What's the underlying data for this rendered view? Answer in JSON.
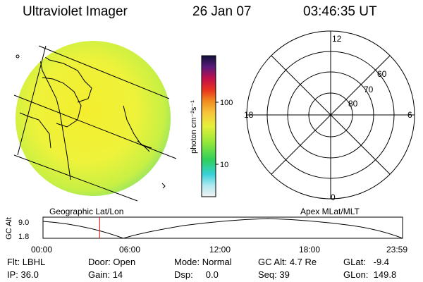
{
  "header": {
    "instrument": "Ultraviolet Imager",
    "date": "26 Jan 07",
    "time": "03:46:35 UT"
  },
  "colorbar": {
    "unit_label": "photon cm⁻²s⁻¹",
    "ticks": [
      "100",
      "10"
    ]
  },
  "polar_plot": {
    "mlt_labels": [
      "12",
      "18",
      "6",
      "0"
    ],
    "mlat_labels": [
      "60",
      "70",
      "80"
    ]
  },
  "panel_labels": {
    "left": "Geographic Lat/Lon",
    "right": "Apex MLat/MLT"
  },
  "altitude_plot": {
    "ylabel": "GC Alt",
    "y_ticks": [
      "9.0",
      "1.8"
    ],
    "x_ticks": [
      "00:00",
      "06:00",
      "12:00",
      "18:00",
      "23:59"
    ],
    "current_time_marker": "03:46:35"
  },
  "info": {
    "row1": [
      {
        "label": "Flt:",
        "value": "LBHL"
      },
      {
        "label": "Door:",
        "value": "Open"
      },
      {
        "label": "Mode:",
        "value": "Normal"
      },
      {
        "label": "GC Alt:",
        "value": "4.7 Re"
      },
      {
        "label": "GLat:",
        "value": "-9.4"
      }
    ],
    "row2": [
      {
        "label": "IP:",
        "value": "36.0"
      },
      {
        "label": "Gain:",
        "value": "14"
      },
      {
        "label": "Dsp:",
        "value": "0.0"
      },
      {
        "label": "Seq:",
        "value": "39"
      },
      {
        "label": "GLon:",
        "value": "149.8"
      }
    ]
  },
  "colors": {
    "disk_fill": "#e8f23a",
    "disk_edge": "#7fe06a",
    "marker": "#ff0000"
  }
}
